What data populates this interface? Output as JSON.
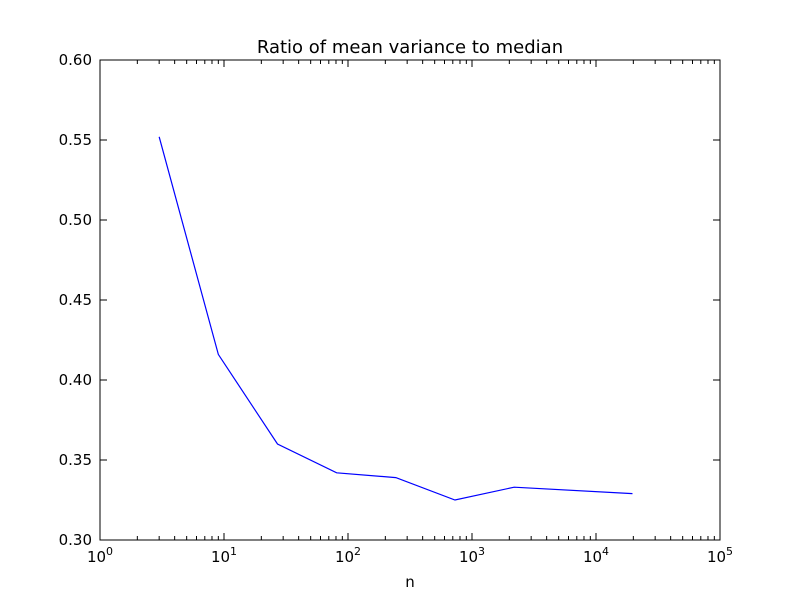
{
  "chart_data": {
    "type": "line",
    "title": "Ratio of mean variance to median",
    "xlabel": "n",
    "ylabel": "",
    "xscale": "log",
    "xlim": [
      1,
      100000
    ],
    "ylim": [
      0.3,
      0.6
    ],
    "grid": false,
    "x_ticks": [
      {
        "value": 1,
        "base": "10",
        "exp": "0"
      },
      {
        "value": 10,
        "base": "10",
        "exp": "1"
      },
      {
        "value": 100,
        "base": "10",
        "exp": "2"
      },
      {
        "value": 1000,
        "base": "10",
        "exp": "3"
      },
      {
        "value": 10000,
        "base": "10",
        "exp": "4"
      },
      {
        "value": 100000,
        "base": "10",
        "exp": "5"
      }
    ],
    "y_ticks": [
      {
        "value": 0.3,
        "label": "0.30"
      },
      {
        "value": 0.35,
        "label": "0.35"
      },
      {
        "value": 0.4,
        "label": "0.40"
      },
      {
        "value": 0.45,
        "label": "0.45"
      },
      {
        "value": 0.5,
        "label": "0.50"
      },
      {
        "value": 0.55,
        "label": "0.55"
      },
      {
        "value": 0.6,
        "label": "0.60"
      }
    ],
    "series": [
      {
        "color": "#0000ff",
        "x": [
          3,
          9,
          27,
          81,
          243,
          729,
          2187,
          19683
        ],
        "y": [
          0.552,
          0.416,
          0.36,
          0.342,
          0.339,
          0.325,
          0.333,
          0.329
        ]
      }
    ]
  }
}
